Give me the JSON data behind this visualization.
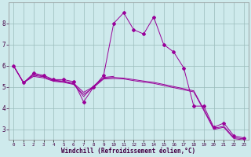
{
  "xlabel": "Windchill (Refroidissement éolien,°C)",
  "background_color": "#ceeaec",
  "grid_color": "#99bbbb",
  "line_color": "#990099",
  "x_hours": [
    0,
    1,
    2,
    3,
    4,
    5,
    6,
    7,
    8,
    9,
    10,
    11,
    12,
    13,
    14,
    15,
    16,
    17,
    18,
    19,
    20,
    21,
    22,
    23
  ],
  "series1": [
    6.0,
    5.2,
    5.65,
    5.55,
    5.35,
    5.35,
    5.25,
    4.3,
    5.0,
    5.55,
    8.0,
    8.5,
    7.7,
    7.5,
    8.3,
    7.0,
    6.65,
    5.9,
    4.1,
    4.1,
    3.1,
    3.3,
    2.7,
    2.6
  ],
  "series2_x": [
    0,
    1,
    2,
    3,
    4,
    5,
    6,
    7,
    8,
    9,
    10
  ],
  "series2_y": [
    6.0,
    5.2,
    5.6,
    5.5,
    5.3,
    5.25,
    5.15,
    4.55,
    5.05,
    5.45,
    5.5
  ],
  "series3": [
    6.0,
    5.2,
    5.55,
    5.48,
    5.32,
    5.28,
    5.18,
    4.75,
    5.02,
    5.42,
    5.45,
    5.42,
    5.35,
    5.28,
    5.22,
    5.12,
    5.02,
    4.92,
    4.82,
    3.95,
    3.05,
    3.15,
    2.62,
    2.55
  ],
  "series4": [
    6.0,
    5.2,
    5.5,
    5.43,
    5.27,
    5.22,
    5.12,
    4.65,
    4.98,
    5.38,
    5.4,
    5.38,
    5.3,
    5.23,
    5.17,
    5.07,
    4.97,
    4.87,
    4.77,
    3.9,
    3.0,
    3.1,
    2.57,
    2.5
  ],
  "ylim": [
    2.5,
    9.0
  ],
  "xlim": [
    -0.5,
    23.5
  ],
  "yticks": [
    3,
    4,
    5,
    6,
    7,
    8
  ],
  "xtick_labels": [
    "0",
    "1",
    "2",
    "3",
    "4",
    "5",
    "6",
    "7",
    "8",
    "9",
    "10",
    "11",
    "12",
    "13",
    "14",
    "15",
    "16",
    "17",
    "18",
    "19",
    "20",
    "21",
    "22",
    "23"
  ]
}
